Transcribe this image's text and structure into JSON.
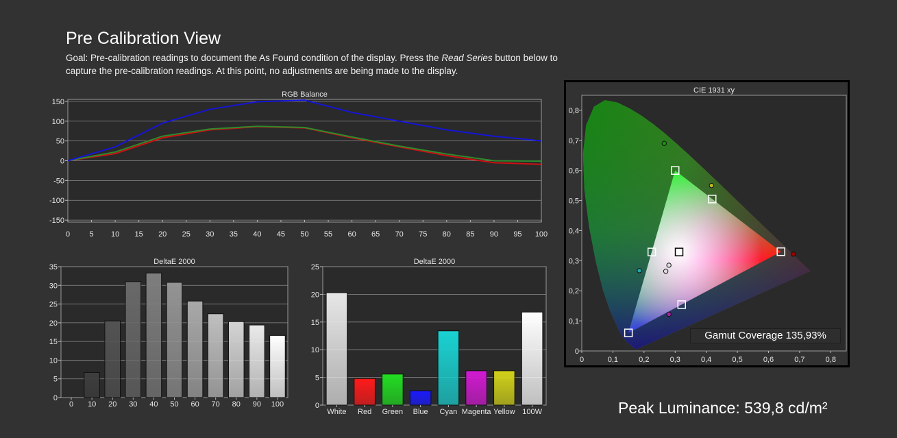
{
  "page": {
    "title": "Pre Calibration View",
    "goal_prefix": "Goal: Pre-calibration readings to document the As Found condition of the display. Press the ",
    "goal_button": "Read Series",
    "goal_suffix": " button below to capture the pre-calibration readings. At this point, no adjustments are being made to the display.",
    "peak_luminance": "Peak Luminance: 539,8 cd/m²",
    "gamut_coverage": "Gamut Coverage 135,93%"
  },
  "chart_data": [
    {
      "id": "rgb",
      "type": "line",
      "title": "RGB Balance",
      "x": [
        0,
        10,
        20,
        30,
        40,
        50,
        60,
        70,
        80,
        90,
        100
      ],
      "xticks": [
        0,
        5,
        10,
        15,
        20,
        25,
        30,
        35,
        40,
        45,
        50,
        55,
        60,
        65,
        70,
        75,
        80,
        85,
        90,
        95,
        100
      ],
      "yticks": [
        150,
        100,
        50,
        0,
        -50,
        -100,
        -150
      ],
      "ylim": [
        -155,
        155
      ],
      "xlim": [
        0,
        100
      ],
      "grid": true,
      "series": [
        {
          "color": "#cc1111",
          "values": [
            0,
            18,
            58,
            78,
            86,
            83,
            58,
            35,
            13,
            -5,
            -9
          ]
        },
        {
          "color": "#2d8a2d",
          "values": [
            0,
            22,
            62,
            80,
            87,
            84,
            60,
            37,
            17,
            0,
            -1
          ]
        },
        {
          "color": "#1515d8",
          "values": [
            0,
            35,
            95,
            130,
            149,
            153,
            122,
            100,
            78,
            62,
            50
          ]
        }
      ]
    },
    {
      "id": "gray",
      "type": "bar",
      "title": "DeltaE 2000",
      "categories": [
        "0",
        "10",
        "20",
        "30",
        "40",
        "50",
        "60",
        "70",
        "80",
        "90",
        "100"
      ],
      "values": [
        0,
        6.7,
        20.5,
        31,
        33.3,
        30.8,
        25.8,
        22.4,
        20.3,
        19.4,
        16.6
      ],
      "ylim": [
        0,
        35
      ],
      "yticks": [
        0,
        5,
        10,
        15,
        20,
        25,
        30,
        35
      ],
      "grid": true
    },
    {
      "id": "colors",
      "type": "bar",
      "title": "DeltaE 2000",
      "categories": [
        "White",
        "Red",
        "Green",
        "Blue",
        "Cyan",
        "Magenta",
        "Yellow",
        "100W"
      ],
      "values": [
        20.3,
        4.8,
        5.6,
        2.6,
        13.4,
        6.2,
        6.2,
        16.8
      ],
      "colors": [
        "#e6e6e6",
        "#ff1a1a",
        "#22dd22",
        "#1a1aff",
        "#1ad2d2",
        "#d21ad2",
        "#d2d21a",
        "#ffffff"
      ],
      "ylim": [
        0,
        25
      ],
      "yticks": [
        0,
        5,
        10,
        15,
        20,
        25
      ],
      "grid": true
    },
    {
      "id": "cie",
      "type": "scatter",
      "title": "CIE 1931 xy",
      "xlim": [
        0,
        0.85
      ],
      "ylim": [
        0,
        0.85
      ],
      "xticks": [
        "0",
        "0,1",
        "0,2",
        "0,3",
        "0,4",
        "0,5",
        "0,6",
        "0,7",
        "0,8"
      ],
      "yticks": [
        "0",
        "0,1",
        "0,2",
        "0,3",
        "0,4",
        "0,5",
        "0,6",
        "0,7",
        "0,8"
      ],
      "targets": [
        [
          0.64,
          0.33
        ],
        [
          0.3,
          0.6
        ],
        [
          0.15,
          0.06
        ],
        [
          0.3127,
          0.329
        ],
        [
          0.225,
          0.329
        ],
        [
          0.321,
          0.154
        ],
        [
          0.419,
          0.505
        ]
      ],
      "measured": [
        {
          "x": 0.68,
          "y": 0.322,
          "color": "#990000"
        },
        {
          "x": 0.265,
          "y": 0.69,
          "color": "#119911"
        },
        {
          "x": 0.417,
          "y": 0.55,
          "color": "#bbbb22"
        },
        {
          "x": 0.185,
          "y": 0.267,
          "color": "#22aaaa"
        },
        {
          "x": 0.28,
          "y": 0.285,
          "color": "#dddddd"
        },
        {
          "x": 0.27,
          "y": 0.265,
          "color": "#dddddd"
        },
        {
          "x": 0.28,
          "y": 0.122,
          "color": "#aa22aa"
        }
      ]
    }
  ]
}
